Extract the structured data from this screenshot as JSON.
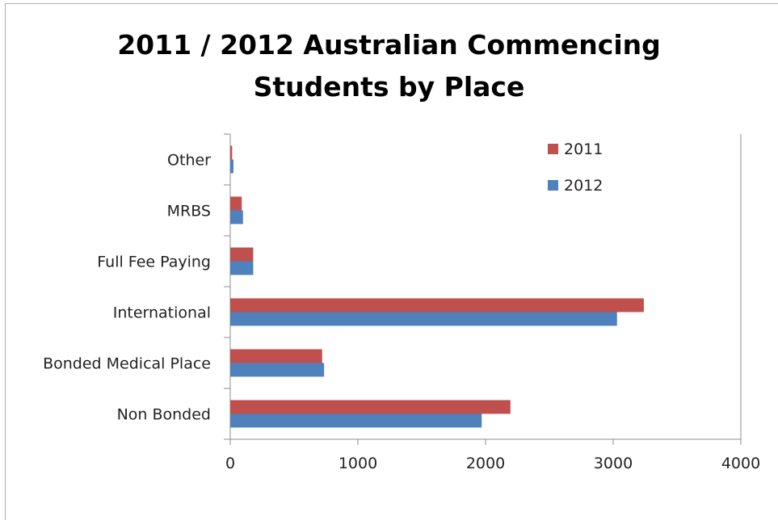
{
  "chart_data": {
    "type": "bar",
    "orientation": "horizontal",
    "title_lines": [
      "2011 / 2012 Australian Commencing",
      "Students by Place"
    ],
    "categories": [
      "Other",
      "MRBS",
      "Full Fee Paying",
      "International",
      "Bonded Medical Place",
      "Non Bonded"
    ],
    "series": [
      {
        "name": "2011",
        "color": "#c0504d",
        "values": [
          15,
          90,
          180,
          3240,
          720,
          2195
        ]
      },
      {
        "name": "2012",
        "color": "#4f81bd",
        "values": [
          25,
          100,
          180,
          3030,
          735,
          1970
        ]
      }
    ],
    "xlim": [
      0,
      4000
    ],
    "xticks": [
      "0",
      "1000",
      "2000",
      "3000",
      "4000"
    ],
    "legend_position": "top-right",
    "grid": false
  }
}
